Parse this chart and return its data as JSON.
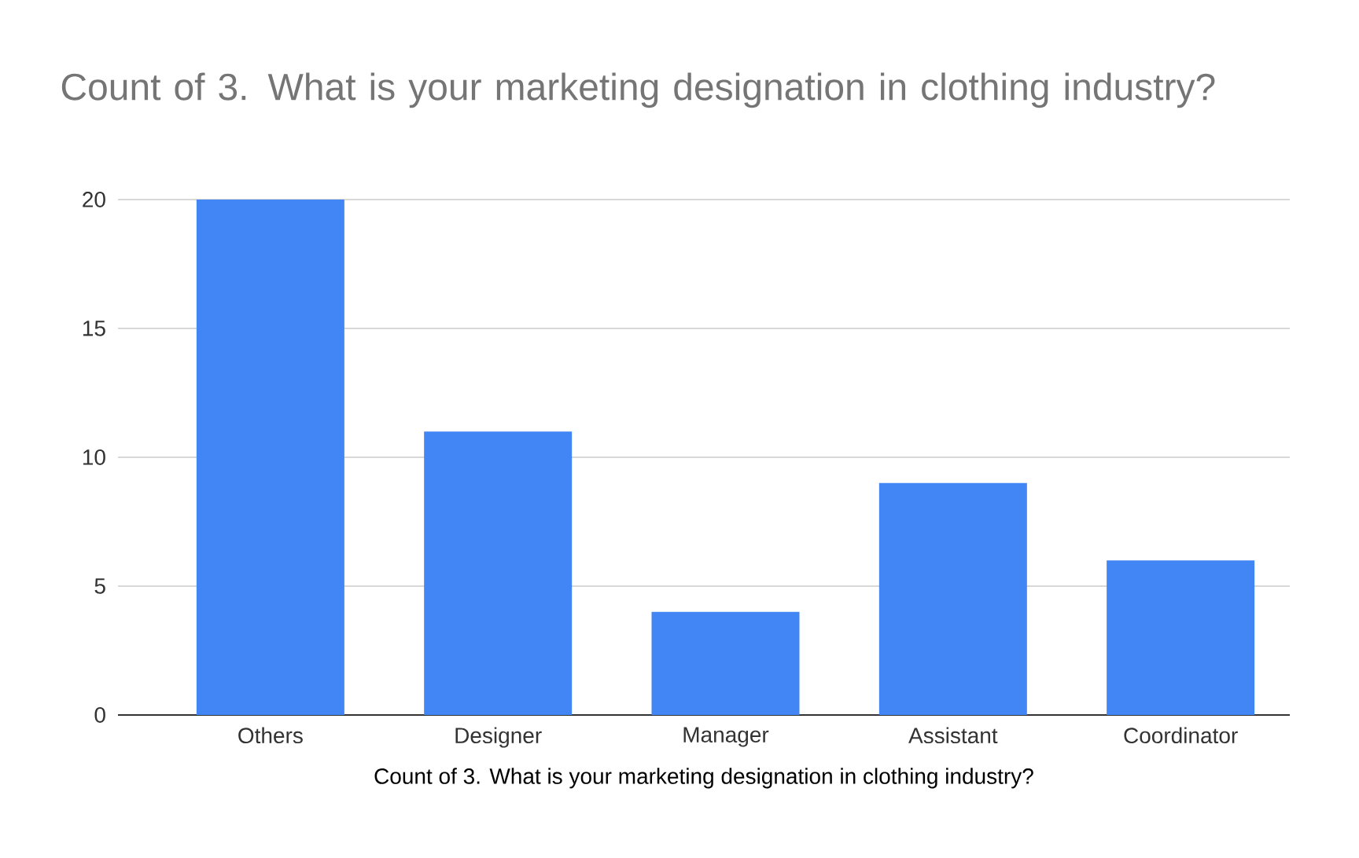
{
  "chart_data": {
    "type": "bar",
    "title": "Count of 3. What is your marketing designation in clothing industry?",
    "xlabel": "Count of 3. What is your marketing designation in clothing industry?",
    "categories": [
      "Others",
      "Designer",
      "Manager",
      "Assistant",
      "Coordinator"
    ],
    "values": [
      20,
      11,
      4,
      9,
      6
    ],
    "color": "#4285f4",
    "ylim": [
      0,
      20
    ],
    "yticks": [
      0,
      5,
      10,
      15,
      20
    ],
    "grid": "y"
  }
}
